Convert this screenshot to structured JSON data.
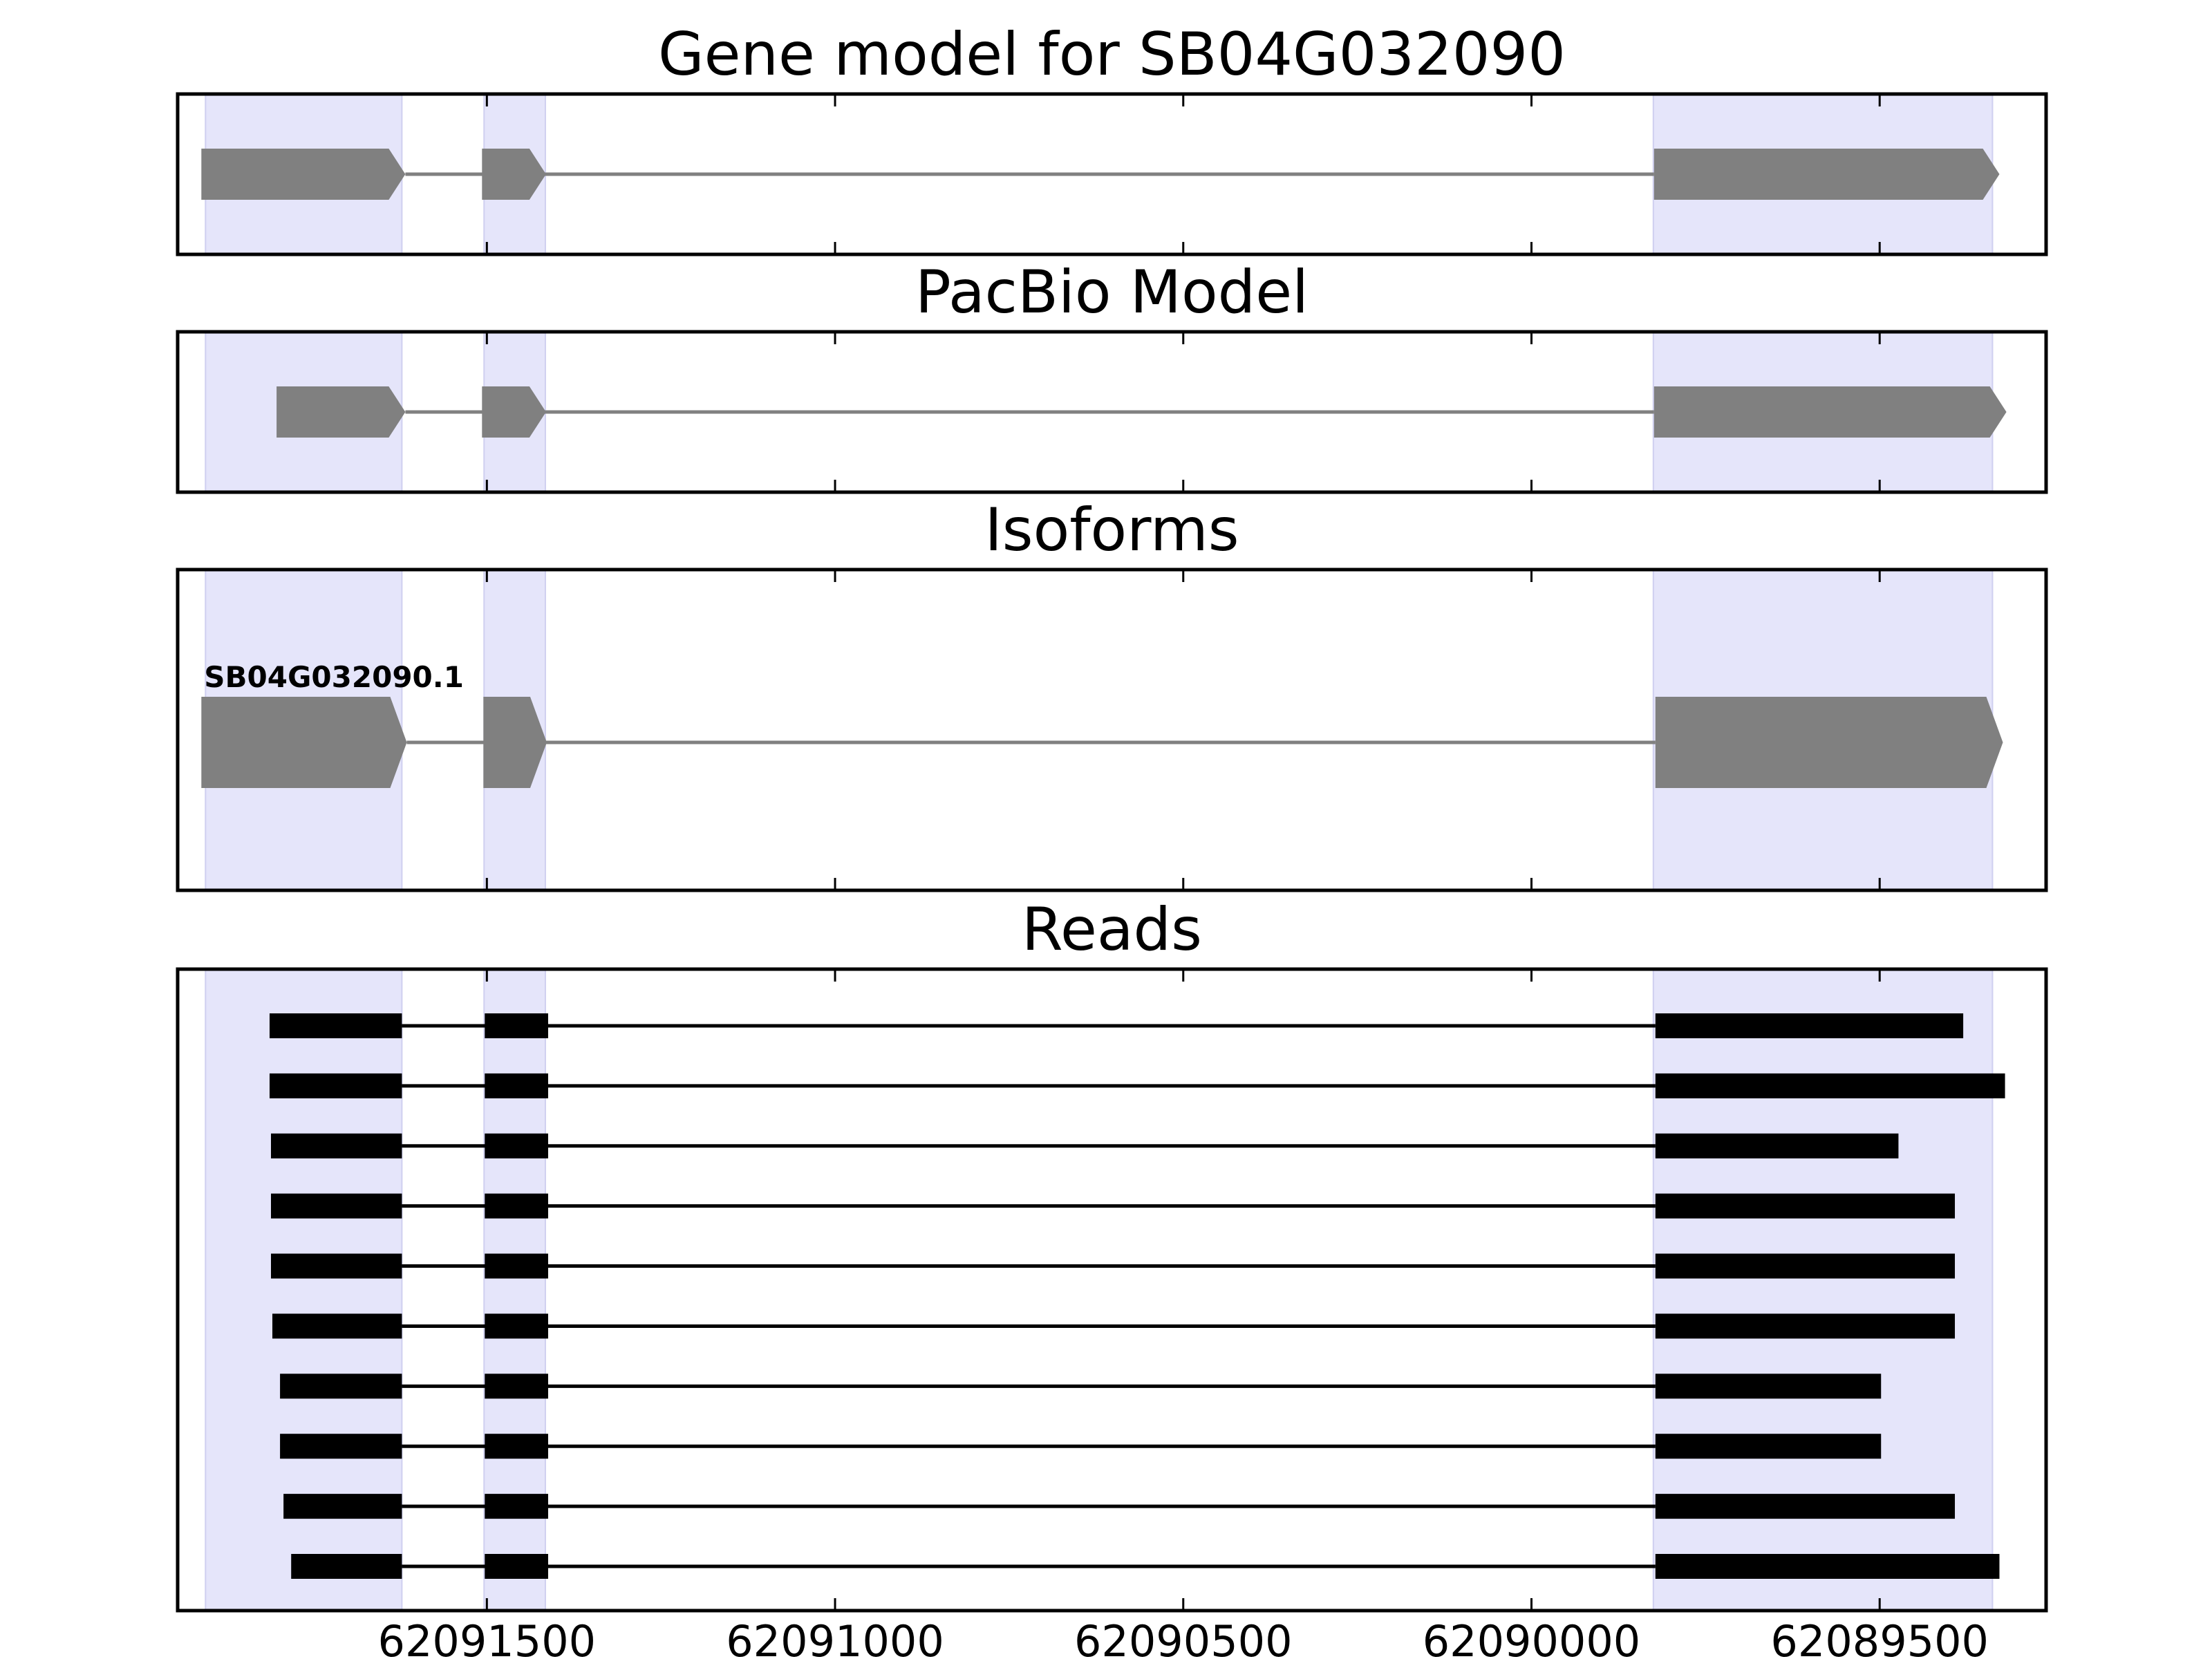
{
  "chart_data": {
    "type": "gene-structure",
    "x_reversed": true,
    "xlim": [
      62091944,
      62089261
    ],
    "xticks": [
      62091500,
      62091000,
      62090500,
      62090000,
      62089500
    ],
    "xtick_labels": [
      "62091500",
      "62091000",
      "62090500",
      "62090000",
      "62089500"
    ],
    "grid": false,
    "colors": {
      "exon_region": "#e5e5fa",
      "model_feature": "#808080",
      "read_feature": "#000000",
      "axes": "#000000"
    },
    "exon_regions": [
      [
        62091904,
        62091622
      ],
      [
        62091504,
        62091416
      ],
      [
        62089825,
        62089338
      ]
    ],
    "panels": [
      {
        "id": "gene-model",
        "title": "Gene model for SB04G032090",
        "kind": "model",
        "features": [
          {
            "name": "",
            "exons": [
              [
                62091910,
                62091617
              ],
              [
                62091507,
                62091415
              ],
              [
                62089824,
                62089328
              ]
            ]
          }
        ]
      },
      {
        "id": "pacbio-model",
        "title": "PacBio Model",
        "kind": "model",
        "features": [
          {
            "name": "",
            "exons": [
              [
                62091802,
                62091617
              ],
              [
                62091507,
                62091415
              ],
              [
                62089824,
                62089318
              ]
            ]
          }
        ]
      },
      {
        "id": "isoforms",
        "title": "Isoforms",
        "kind": "model",
        "features": [
          {
            "name": "SB04G032090.1",
            "exons": [
              [
                62091910,
                62091615
              ],
              [
                62091505,
                62091414
              ],
              [
                62089822,
                62089323
              ]
            ]
          }
        ]
      },
      {
        "id": "reads",
        "title": "Reads",
        "kind": "reads",
        "features": [
          {
            "name": "",
            "exons": [
              [
                62091812,
                62091622
              ],
              [
                62091503,
                62091412
              ],
              [
                62089822,
                62089380
              ]
            ]
          },
          {
            "name": "",
            "exons": [
              [
                62091812,
                62091622
              ],
              [
                62091503,
                62091412
              ],
              [
                62089822,
                62089320
              ]
            ]
          },
          {
            "name": "",
            "exons": [
              [
                62091810,
                62091622
              ],
              [
                62091503,
                62091412
              ],
              [
                62089822,
                62089473
              ]
            ]
          },
          {
            "name": "",
            "exons": [
              [
                62091810,
                62091622
              ],
              [
                62091503,
                62091412
              ],
              [
                62089822,
                62089392
              ]
            ]
          },
          {
            "name": "",
            "exons": [
              [
                62091810,
                62091622
              ],
              [
                62091503,
                62091412
              ],
              [
                62089822,
                62089392
              ]
            ]
          },
          {
            "name": "",
            "exons": [
              [
                62091808,
                62091622
              ],
              [
                62091503,
                62091412
              ],
              [
                62089822,
                62089392
              ]
            ]
          },
          {
            "name": "",
            "exons": [
              [
                62091797,
                62091622
              ],
              [
                62091503,
                62091412
              ],
              [
                62089822,
                62089498
              ]
            ]
          },
          {
            "name": "",
            "exons": [
              [
                62091797,
                62091622
              ],
              [
                62091503,
                62091412
              ],
              [
                62089822,
                62089498
              ]
            ]
          },
          {
            "name": "",
            "exons": [
              [
                62091792,
                62091622
              ],
              [
                62091503,
                62091412
              ],
              [
                62089822,
                62089392
              ]
            ]
          },
          {
            "name": "",
            "exons": [
              [
                62091781,
                62091622
              ],
              [
                62091503,
                62091412
              ],
              [
                62089822,
                62089328
              ]
            ]
          }
        ]
      }
    ]
  }
}
